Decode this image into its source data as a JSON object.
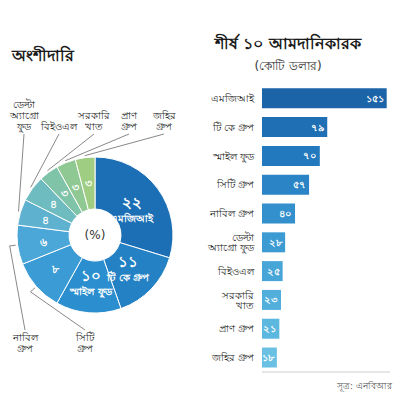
{
  "chart_data": [
    {
      "type": "pie",
      "title": "অংশীদারি",
      "annotation": "(%)",
      "categories": [
        "এমজিআই",
        "টি কে গ্রুপ",
        "স্মাইল ফুড",
        "সিটি গ্রুপ",
        "নাবিল গ্রুপ",
        "ডেল্টা অ্যাগ্রো ফুড",
        "বিইওএল",
        "সরকারি খাত",
        "প্রাণ গ্রুপ",
        "জহির গ্রুপ"
      ],
      "values": [
        22,
        11,
        10,
        8,
        6,
        4,
        4,
        3,
        3,
        3
      ],
      "value_labels": [
        "২২",
        "১১",
        "১০",
        "৮",
        "৬",
        "৪",
        "৪",
        "৩",
        "৩",
        "৩"
      ],
      "colors": [
        "#1d6fb5",
        "#2381c4",
        "#2b8fcf",
        "#3a9bd5",
        "#4ba7d8",
        "#5fb2cf",
        "#6fbcc0",
        "#7fc3a9",
        "#90c893",
        "#9fcd82"
      ],
      "data_labels": true
    },
    {
      "type": "bar",
      "orientation": "horizontal",
      "title": "শীর্ষ ১০ আমদানিকারক",
      "subtitle": "(কোটি ডলার)",
      "categories": [
        "এমজিআই",
        "টি কে গ্রুপ",
        "স্মাইল ফুড",
        "সিটি গ্রুপ",
        "নাবিল গ্রুপ",
        "ডেল্টা অ্যাগ্রো ফুড",
        "বিইওএল",
        "সরকারি খাত",
        "প্রাণ গ্রুপ",
        "জহির গ্রুপ"
      ],
      "values": [
        151,
        79,
        70,
        57,
        40,
        28,
        25,
        23,
        21,
        18
      ],
      "value_labels": [
        "১৫১",
        "৭৯",
        "৭০",
        "৫৭",
        "৪০",
        "২৮",
        "২৫",
        "২৩",
        "২১",
        "১৮"
      ],
      "colors": [
        "#1c64a8",
        "#1f6fb4",
        "#2279bd",
        "#2a84c5",
        "#3390cd",
        "#3d9bd3",
        "#47a5d8",
        "#52afdc",
        "#5db8df",
        "#69c0e2"
      ],
      "xlim": [
        0,
        155
      ],
      "data_labels": true,
      "tick_labels": "y",
      "annotation": "সূত্র: এনবিআর"
    }
  ]
}
